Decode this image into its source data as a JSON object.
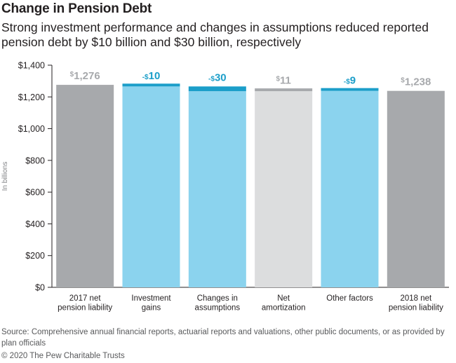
{
  "title": "Change in Pension Debt",
  "subtitle": "Strong investment performance and changes in assumptions reduced reported pension debt by $10 billion and $30 billion, respectively",
  "source": "Source: Comprehensive annual financial reports, actuarial reports and valuations, other public documents, or as provided by plan officials",
  "copyright": "© 2020 The Pew Charitable Trusts",
  "colors": {
    "total_bar": "#a7a9ac",
    "change_bar": "#8bd3ee",
    "change_cap": "#1b9ec9",
    "change_label": "#1b9ec9",
    "neutral_bar": "#dcddde",
    "neutral_cap": "#a7a9ac",
    "total_label": "#a7a9ac",
    "axis": "#231f20"
  },
  "chart_data": {
    "type": "bar",
    "subtype": "waterfall",
    "ylabel": "In billions",
    "ylim": [
      0,
      1400
    ],
    "yticks": [
      "$0",
      "$200",
      "$400",
      "$600",
      "$800",
      "$1,000",
      "$1,200",
      "$1,400"
    ],
    "grid": false,
    "categories": [
      [
        "2017 net",
        "pension liability"
      ],
      [
        "Investment",
        "gains"
      ],
      [
        "Changes in",
        "assumptions"
      ],
      [
        "Net",
        "amortization"
      ],
      [
        "Other factors"
      ],
      [
        "2018 net",
        "pension liability"
      ]
    ],
    "bars": [
      {
        "kind": "total",
        "value": 1276,
        "label_prefix": "$",
        "label": "1,276"
      },
      {
        "kind": "change",
        "value": -10,
        "label_prefix": "-$",
        "label": "10"
      },
      {
        "kind": "change",
        "value": -30,
        "label_prefix": "-$",
        "label": "30"
      },
      {
        "kind": "neutral",
        "value": 11,
        "label_prefix": "$",
        "label": "11"
      },
      {
        "kind": "change",
        "value": -9,
        "label_prefix": "-$",
        "label": "9"
      },
      {
        "kind": "total",
        "value": 1238,
        "label_prefix": "$",
        "label": "1,238"
      }
    ]
  }
}
